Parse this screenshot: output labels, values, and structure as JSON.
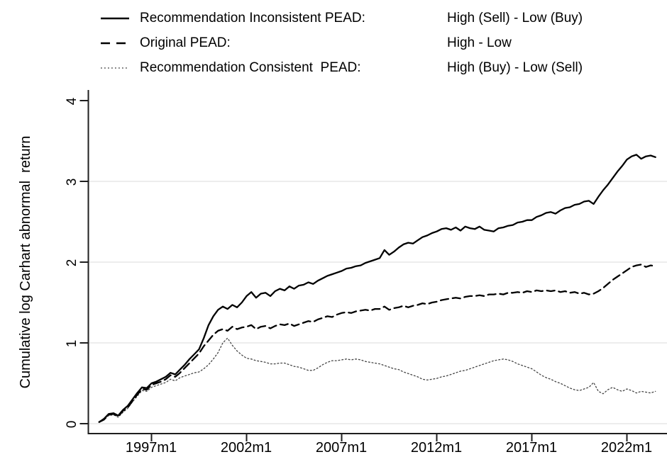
{
  "colors": {
    "background": "#ffffff",
    "line": "#000000",
    "dotted_line": "#444444",
    "grid": "#e7e7e7",
    "axis": "#1f1f1f",
    "text": "#000000"
  },
  "legend": {
    "rows": [
      {
        "label": "Recommendation Inconsistent PEAD:",
        "value": "High (Sell) - Low (Buy)",
        "style": "solid"
      },
      {
        "label": "Original PEAD:",
        "value": "High - Low",
        "style": "dashed"
      },
      {
        "label": "Recommendation Consistent  PEAD:",
        "value": "High (Buy) - Low (Sell)",
        "style": "dotted"
      }
    ]
  },
  "chart_data": {
    "type": "line",
    "title": "",
    "xlabel": "",
    "ylabel": "Cumulative log Carhart abnormal  return",
    "ylim": [
      0,
      4
    ],
    "xlim": [
      1993.66,
      2024.1
    ],
    "grid": "horizontal",
    "grid_y_values": [
      0,
      1,
      2,
      3
    ],
    "y_ticks": [
      0,
      1,
      2,
      3,
      4
    ],
    "y_tick_labels": [
      "0",
      "1",
      "2",
      "3",
      "4"
    ],
    "x_tick_values": [
      1997,
      2002,
      2007,
      2012,
      2017,
      2022
    ],
    "x_ticks": [
      "1997m1",
      "2002m1",
      "2007m1",
      "2012m1",
      "2017m1",
      "2022m1"
    ],
    "legend_position": "top",
    "x": [
      1994.25,
      1994.5,
      1994.75,
      1995,
      1995.25,
      1995.5,
      1995.75,
      1996,
      1996.25,
      1996.5,
      1996.75,
      1997,
      1997.25,
      1997.5,
      1997.75,
      1998,
      1998.25,
      1998.5,
      1998.75,
      1999,
      1999.25,
      1999.5,
      1999.75,
      2000,
      2000.25,
      2000.5,
      2000.75,
      2001,
      2001.25,
      2001.5,
      2001.75,
      2002,
      2002.25,
      2002.5,
      2002.75,
      2003,
      2003.25,
      2003.5,
      2003.75,
      2004,
      2004.25,
      2004.5,
      2004.75,
      2005,
      2005.25,
      2005.5,
      2005.75,
      2006,
      2006.25,
      2006.5,
      2006.75,
      2007,
      2007.25,
      2007.5,
      2007.75,
      2008,
      2008.25,
      2008.5,
      2008.75,
      2009,
      2009.25,
      2009.5,
      2009.75,
      2010,
      2010.25,
      2010.5,
      2010.75,
      2011,
      2011.25,
      2011.5,
      2011.75,
      2012,
      2012.25,
      2012.5,
      2012.75,
      2013,
      2013.25,
      2013.5,
      2013.75,
      2014,
      2014.25,
      2014.5,
      2014.75,
      2015,
      2015.25,
      2015.5,
      2015.75,
      2016,
      2016.25,
      2016.5,
      2016.75,
      2017,
      2017.25,
      2017.5,
      2017.75,
      2018,
      2018.25,
      2018.5,
      2018.75,
      2019,
      2019.25,
      2019.5,
      2019.75,
      2020,
      2020.25,
      2020.5,
      2020.75,
      2021,
      2021.25,
      2021.5,
      2021.75,
      2022,
      2022.25,
      2022.5,
      2022.75,
      2023,
      2023.25,
      2023.5
    ],
    "series": [
      {
        "name": "Recommendation Inconsistent PEAD: High (Sell) - Low (Buy)",
        "style": "solid",
        "y": [
          0.02,
          0.06,
          0.12,
          0.13,
          0.1,
          0.17,
          0.22,
          0.3,
          0.38,
          0.45,
          0.44,
          0.5,
          0.52,
          0.55,
          0.58,
          0.63,
          0.61,
          0.67,
          0.73,
          0.8,
          0.86,
          0.92,
          1.06,
          1.22,
          1.33,
          1.41,
          1.45,
          1.42,
          1.47,
          1.44,
          1.5,
          1.58,
          1.63,
          1.56,
          1.61,
          1.62,
          1.58,
          1.64,
          1.67,
          1.65,
          1.7,
          1.67,
          1.71,
          1.72,
          1.75,
          1.73,
          1.77,
          1.8,
          1.83,
          1.85,
          1.87,
          1.89,
          1.92,
          1.93,
          1.95,
          1.96,
          1.99,
          2.01,
          2.03,
          2.05,
          2.15,
          2.09,
          2.13,
          2.18,
          2.22,
          2.24,
          2.23,
          2.27,
          2.31,
          2.33,
          2.36,
          2.38,
          2.41,
          2.42,
          2.4,
          2.43,
          2.39,
          2.44,
          2.42,
          2.41,
          2.44,
          2.4,
          2.39,
          2.38,
          2.42,
          2.43,
          2.45,
          2.46,
          2.49,
          2.5,
          2.52,
          2.52,
          2.56,
          2.58,
          2.61,
          2.62,
          2.6,
          2.64,
          2.67,
          2.68,
          2.71,
          2.72,
          2.75,
          2.76,
          2.72,
          2.81,
          2.89,
          2.96,
          3.04,
          3.12,
          3.19,
          3.27,
          3.31,
          3.33,
          3.28,
          3.31,
          3.32,
          3.3
        ]
      },
      {
        "name": "Original PEAD: High - Low",
        "style": "dashed",
        "y": [
          0.02,
          0.05,
          0.11,
          0.12,
          0.09,
          0.16,
          0.2,
          0.28,
          0.36,
          0.43,
          0.42,
          0.48,
          0.5,
          0.52,
          0.55,
          0.6,
          0.58,
          0.63,
          0.69,
          0.75,
          0.81,
          0.87,
          0.96,
          1.03,
          1.1,
          1.15,
          1.17,
          1.15,
          1.2,
          1.17,
          1.19,
          1.2,
          1.22,
          1.17,
          1.2,
          1.21,
          1.18,
          1.21,
          1.23,
          1.22,
          1.24,
          1.21,
          1.23,
          1.25,
          1.27,
          1.26,
          1.29,
          1.31,
          1.33,
          1.32,
          1.35,
          1.37,
          1.38,
          1.37,
          1.39,
          1.4,
          1.41,
          1.4,
          1.42,
          1.42,
          1.45,
          1.41,
          1.43,
          1.44,
          1.46,
          1.44,
          1.46,
          1.47,
          1.49,
          1.48,
          1.5,
          1.51,
          1.53,
          1.54,
          1.55,
          1.56,
          1.55,
          1.57,
          1.58,
          1.58,
          1.59,
          1.58,
          1.6,
          1.6,
          1.61,
          1.6,
          1.62,
          1.62,
          1.63,
          1.62,
          1.64,
          1.63,
          1.65,
          1.64,
          1.65,
          1.64,
          1.65,
          1.63,
          1.64,
          1.62,
          1.63,
          1.61,
          1.62,
          1.6,
          1.61,
          1.64,
          1.68,
          1.73,
          1.78,
          1.82,
          1.86,
          1.9,
          1.94,
          1.96,
          1.97,
          1.94,
          1.96,
          1.95
        ]
      },
      {
        "name": "Recommendation Consistent PEAD: High (Buy) - Low (Sell)",
        "style": "dotted",
        "y": [
          0.02,
          0.05,
          0.1,
          0.11,
          0.08,
          0.14,
          0.19,
          0.27,
          0.34,
          0.41,
          0.4,
          0.45,
          0.47,
          0.49,
          0.51,
          0.55,
          0.53,
          0.57,
          0.59,
          0.61,
          0.63,
          0.64,
          0.68,
          0.73,
          0.8,
          0.88,
          1.0,
          1.06,
          0.97,
          0.9,
          0.85,
          0.81,
          0.8,
          0.78,
          0.77,
          0.76,
          0.74,
          0.74,
          0.75,
          0.75,
          0.73,
          0.71,
          0.7,
          0.68,
          0.66,
          0.66,
          0.69,
          0.73,
          0.76,
          0.78,
          0.78,
          0.79,
          0.8,
          0.79,
          0.8,
          0.79,
          0.77,
          0.76,
          0.75,
          0.74,
          0.72,
          0.7,
          0.68,
          0.67,
          0.64,
          0.62,
          0.6,
          0.58,
          0.55,
          0.54,
          0.55,
          0.56,
          0.58,
          0.59,
          0.61,
          0.63,
          0.65,
          0.66,
          0.68,
          0.7,
          0.72,
          0.74,
          0.76,
          0.78,
          0.79,
          0.8,
          0.79,
          0.77,
          0.74,
          0.72,
          0.7,
          0.68,
          0.64,
          0.6,
          0.57,
          0.55,
          0.52,
          0.5,
          0.47,
          0.44,
          0.42,
          0.41,
          0.43,
          0.45,
          0.51,
          0.4,
          0.37,
          0.42,
          0.45,
          0.42,
          0.4,
          0.43,
          0.41,
          0.38,
          0.4,
          0.39,
          0.38,
          0.4
        ]
      }
    ]
  }
}
